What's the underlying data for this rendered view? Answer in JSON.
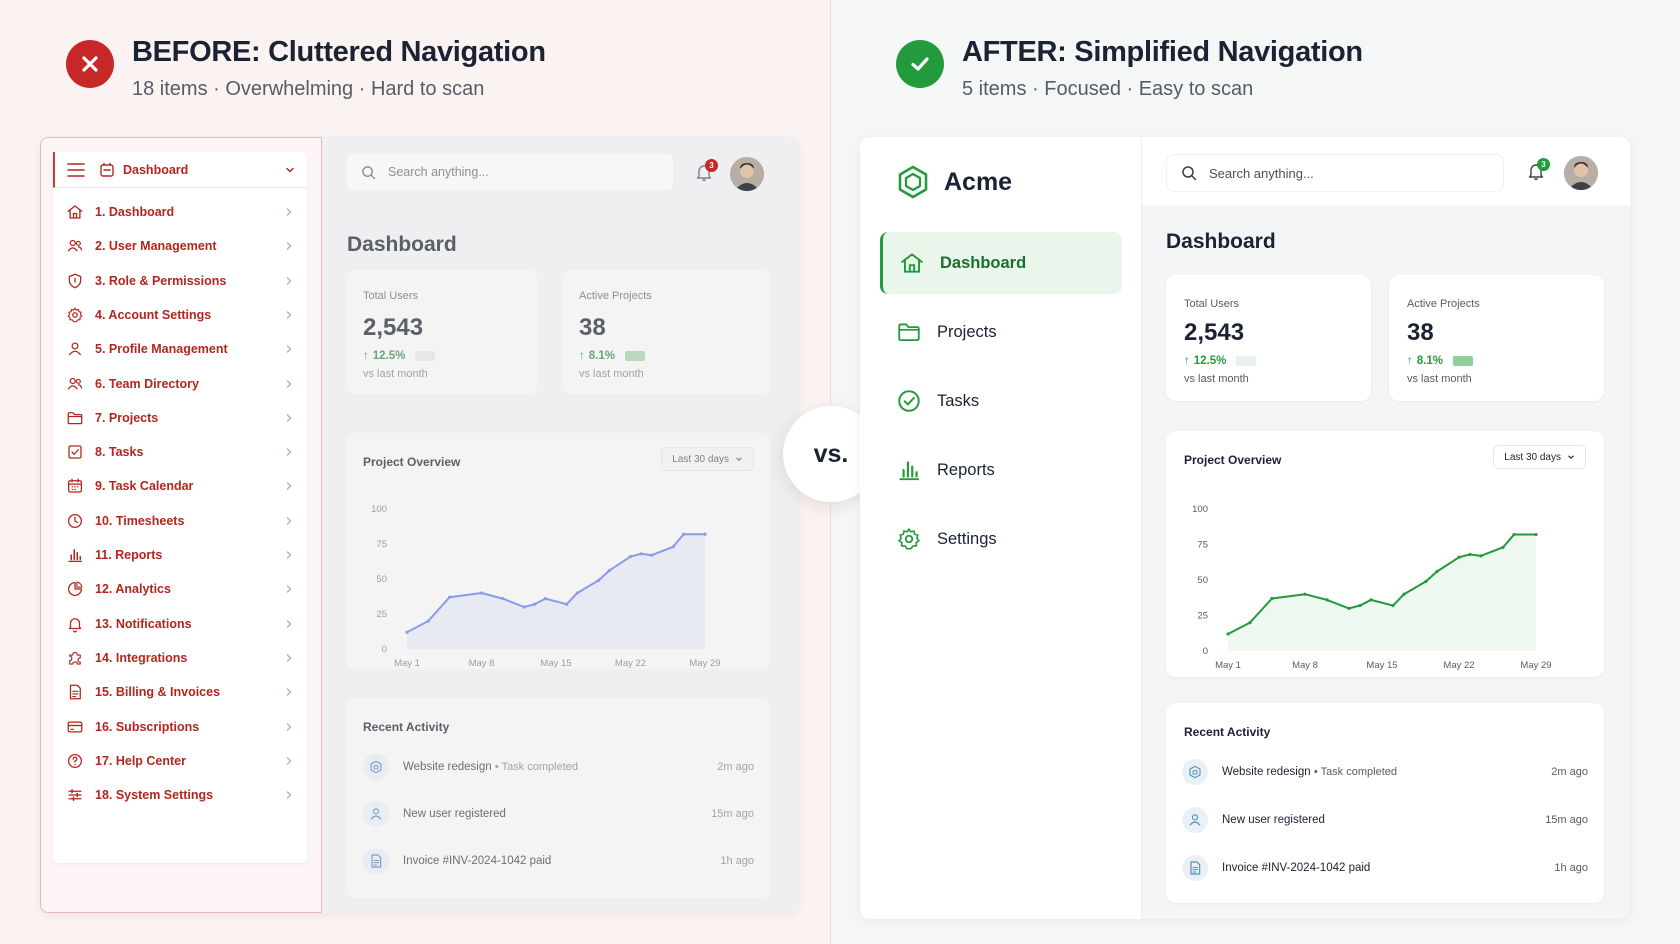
{
  "colors": {
    "bad": "#c62828",
    "good": "#239a3b",
    "before_line": "#8a9be8",
    "after_line": "#239a3b"
  },
  "before": {
    "title": "BEFORE: Cluttered Navigation",
    "subtitle": "18 items · Overwhelming · Hard to scan",
    "nav_header": "Dashboard",
    "nav_items": [
      {
        "label": "1. Dashboard",
        "icon": "home-icon"
      },
      {
        "label": "2. User Management",
        "icon": "users-icon"
      },
      {
        "label": "3. Role & Permissions",
        "icon": "shield-icon"
      },
      {
        "label": "4. Account Settings",
        "icon": "gear-icon"
      },
      {
        "label": "5. Profile Management",
        "icon": "user-icon"
      },
      {
        "label": "6. Team Directory",
        "icon": "users-icon"
      },
      {
        "label": "7. Projects",
        "icon": "folder-icon"
      },
      {
        "label": "8. Tasks",
        "icon": "checkbox-icon"
      },
      {
        "label": "9. Task Calendar",
        "icon": "calendar-icon"
      },
      {
        "label": "10. Timesheets",
        "icon": "clock-icon"
      },
      {
        "label": "11. Reports",
        "icon": "bar-chart-icon"
      },
      {
        "label": "12. Analytics",
        "icon": "pie-chart-icon"
      },
      {
        "label": "13. Notifications",
        "icon": "bell-icon"
      },
      {
        "label": "14. Integrations",
        "icon": "puzzle-icon"
      },
      {
        "label": "15. Billing & Invoices",
        "icon": "invoice-icon"
      },
      {
        "label": "16. Subscriptions",
        "icon": "credit-card-icon"
      },
      {
        "label": "17. Help Center",
        "icon": "help-icon"
      },
      {
        "label": "18. System Settings",
        "icon": "sliders-icon"
      }
    ],
    "search_placeholder": "Search anything...",
    "notification_count": "3",
    "page_title": "Dashboard",
    "stats": [
      {
        "label": "Total Users",
        "value": "2,543",
        "delta": "12.5%",
        "sub": "vs last month"
      },
      {
        "label": "Active Projects",
        "value": "38",
        "delta": "8.1%",
        "sub": "vs last month"
      }
    ],
    "overview_title": "Project Overview",
    "range_label": "Last 30 days",
    "activity_title": "Recent Activity",
    "activity": [
      {
        "text": "Website redesign",
        "sub": "• Task completed",
        "time": "2m ago",
        "icon": "box-icon"
      },
      {
        "text": "New user registered",
        "sub": "",
        "time": "15m ago",
        "icon": "user-icon"
      },
      {
        "text": "Invoice #INV-2024-1042 paid",
        "sub": "",
        "time": "1h ago",
        "icon": "invoice-icon"
      }
    ]
  },
  "after": {
    "title": "AFTER: Simplified Navigation",
    "subtitle": "5 items · Focused · Easy to scan",
    "brand": "Acme",
    "nav_items": [
      {
        "label": "Dashboard",
        "icon": "home-icon",
        "active": true
      },
      {
        "label": "Projects",
        "icon": "folder-icon",
        "active": false
      },
      {
        "label": "Tasks",
        "icon": "check-circle-icon",
        "active": false
      },
      {
        "label": "Reports",
        "icon": "bar-chart-icon",
        "active": false
      },
      {
        "label": "Settings",
        "icon": "gear-icon",
        "active": false
      }
    ],
    "search_placeholder": "Search anything...",
    "notification_count": "3",
    "page_title": "Dashboard",
    "stats": [
      {
        "label": "Total Users",
        "value": "2,543",
        "delta": "12.5%",
        "sub": "vs last month"
      },
      {
        "label": "Active Projects",
        "value": "38",
        "delta": "8.1%",
        "sub": "vs last month"
      }
    ],
    "overview_title": "Project Overview",
    "range_label": "Last 30 days",
    "activity_title": "Recent Activity",
    "activity": [
      {
        "text": "Website redesign",
        "sub": "• Task completed",
        "time": "2m ago",
        "icon": "box-icon"
      },
      {
        "text": "New user registered",
        "sub": "",
        "time": "15m ago",
        "icon": "user-icon"
      },
      {
        "text": "Invoice #INV-2024-1042 paid",
        "sub": "",
        "time": "1h ago",
        "icon": "invoice-icon"
      }
    ]
  },
  "vs_label": "vs.",
  "chart_data": [
    {
      "type": "line",
      "title": "Project Overview",
      "x": [
        "May 1",
        "May 3",
        "May 5",
        "May 8",
        "May 10",
        "May 12",
        "May 13",
        "May 14",
        "May 16",
        "May 17",
        "May 19",
        "May 20",
        "May 22",
        "May 23",
        "May 24",
        "May 26",
        "May 27",
        "May 29"
      ],
      "x_ticks": [
        "May 1",
        "May 8",
        "May 15",
        "May 22",
        "May 29"
      ],
      "y_ticks": [
        0,
        25,
        50,
        75,
        100
      ],
      "ylim": [
        0,
        100
      ],
      "series": [
        {
          "values": [
            12,
            20,
            37,
            40,
            36,
            30,
            32,
            36,
            32,
            40,
            49,
            56,
            66,
            68,
            67,
            73,
            82,
            82
          ]
        }
      ]
    },
    {
      "type": "line",
      "title": "Project Overview",
      "x": [
        "May 1",
        "May 3",
        "May 5",
        "May 8",
        "May 10",
        "May 12",
        "May 13",
        "May 14",
        "May 16",
        "May 17",
        "May 19",
        "May 20",
        "May 22",
        "May 23",
        "May 24",
        "May 26",
        "May 27",
        "May 29"
      ],
      "x_ticks": [
        "May 1",
        "May 8",
        "May 15",
        "May 22",
        "May 29"
      ],
      "y_ticks": [
        0,
        25,
        50,
        75,
        100
      ],
      "ylim": [
        0,
        100
      ],
      "series": [
        {
          "values": [
            12,
            20,
            37,
            40,
            36,
            30,
            32,
            36,
            32,
            40,
            49,
            56,
            66,
            68,
            67,
            73,
            82,
            82
          ]
        }
      ]
    }
  ]
}
